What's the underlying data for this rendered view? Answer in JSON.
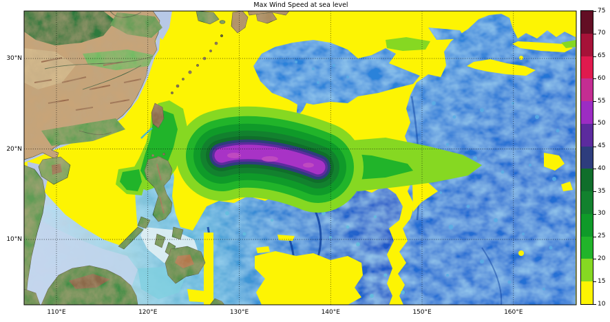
{
  "title": "Max Wind Speed at sea level",
  "chart_data": {
    "type": "heatmap",
    "subtype": "filled-contour-map-over-terrain-basemap",
    "title": "Max Wind Speed at sea level",
    "region": {
      "lon_min_deg_e": 106.5,
      "lon_max_deg_e": 166.8,
      "lat_min_deg_n": 2.8,
      "lat_max_deg_n": 35.3
    },
    "x_ticks": [
      "110°E",
      "120°E",
      "130°E",
      "140°E",
      "150°E",
      "160°E"
    ],
    "x_tick_lons": [
      110,
      120,
      130,
      140,
      150,
      160
    ],
    "y_ticks": [
      "30°N",
      "20°N",
      "10°N"
    ],
    "y_tick_lats": [
      30,
      20,
      10
    ],
    "grid": "dotted-black",
    "colorbar": {
      "min": 10,
      "max": 75,
      "step": 5,
      "tick_values": [
        10,
        15,
        20,
        25,
        30,
        35,
        40,
        45,
        50,
        55,
        60,
        65,
        70,
        75
      ],
      "tick_labels": [
        "10",
        "15",
        "20",
        "25",
        "30",
        "35",
        "40",
        "45",
        "50",
        "55",
        "60",
        "65",
        "70",
        "75"
      ],
      "segment_colors_low_to_high": [
        "#fdf403",
        "#86d822",
        "#21b42a",
        "#0f9a29",
        "#12812e",
        "#106e2b",
        "#2e3d7d",
        "#5c2b9e",
        "#9c2cc3",
        "#c42d92",
        "#e01a4e",
        "#a61238",
        "#630e24"
      ]
    },
    "features": {
      "storm_core": {
        "description": "Elongated wind-speed maximum over the Philippine Sea",
        "lon_range_deg_e": [
          126.5,
          141
        ],
        "lat_range_deg_n": [
          16,
          19.5
        ],
        "peak_band": "50-55"
      },
      "outer_band_10_15": "Covers East/South China Sea, Luzon-Ryukyu area and western Philippine Sea",
      "calm_ocean_visible_basemap": [
        "Northwest Pacific east of ~145°E",
        "Sea south of the storm (Philippine Trench area)",
        "Sulu/Celebes and Sunda shelf region"
      ],
      "land_visible": [
        "China",
        "Taiwan",
        "Hainan",
        "Luzon",
        "Visayas",
        "Mindanao",
        "Palawan",
        "Borneo",
        "Kyushu",
        "Shikoku",
        "Ryukyu Islands",
        "Vietnam"
      ]
    }
  }
}
